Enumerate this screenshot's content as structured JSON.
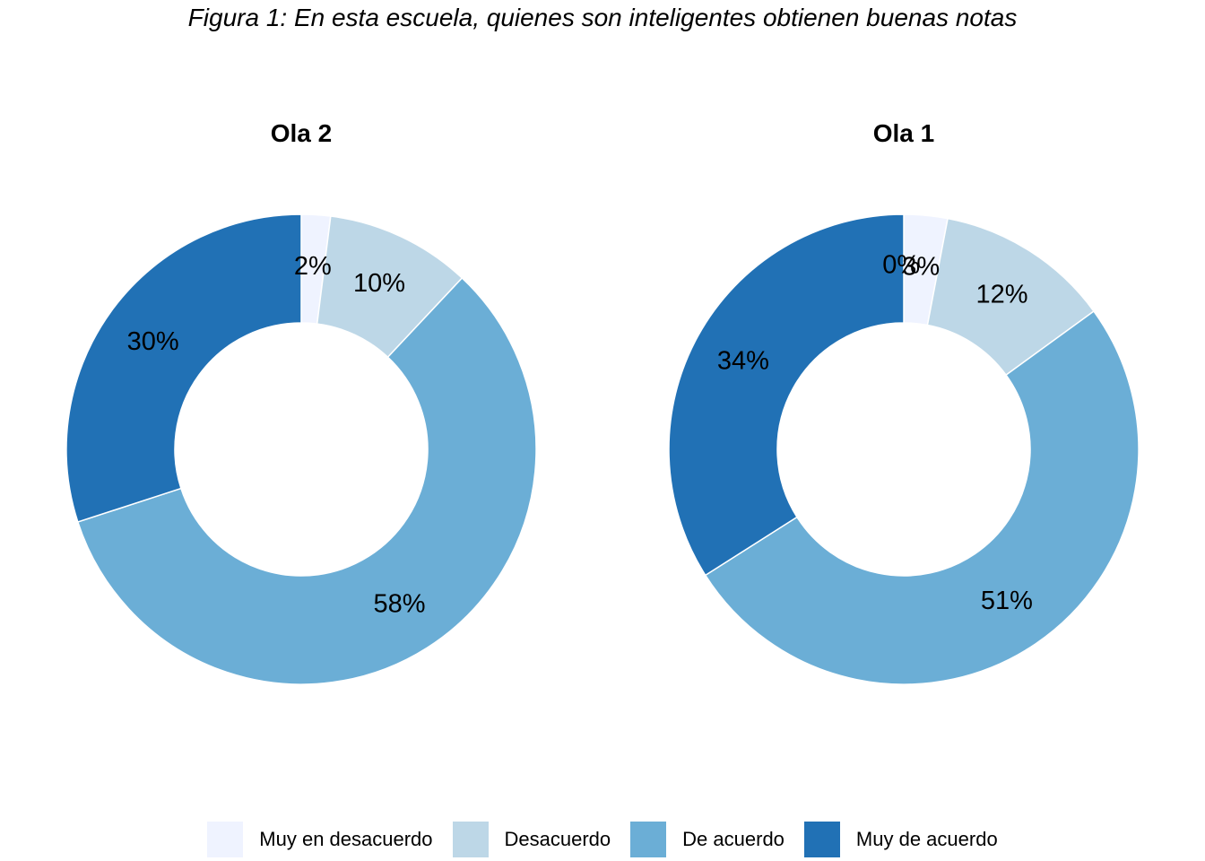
{
  "title": "Figura 1: En esta escuela, quienes son inteligentes obtienen buenas notas",
  "legend": [
    {
      "label": "Muy en desacuerdo",
      "color": "#eff3ff"
    },
    {
      "label": "Desacuerdo",
      "color": "#bdd7e7"
    },
    {
      "label": "De acuerdo",
      "color": "#6baed6"
    },
    {
      "label": "Muy de acuerdo",
      "color": "#2171b5"
    }
  ],
  "chart_data": [
    {
      "type": "pie",
      "title": "Ola 2",
      "categories": [
        "Muy en desacuerdo",
        "Desacuerdo",
        "De acuerdo",
        "Muy de acuerdo"
      ],
      "values": [
        2,
        10,
        58,
        30
      ],
      "labels": [
        "2%",
        "10%",
        "58%",
        "30%"
      ],
      "colors": [
        "#eff3ff",
        "#bdd7e7",
        "#6baed6",
        "#2171b5"
      ]
    },
    {
      "type": "pie",
      "title": "Ola 1",
      "categories": [
        "Muy en desacuerdo",
        "Desacuerdo",
        "De acuerdo",
        "Muy de acuerdo"
      ],
      "values": [
        3,
        12,
        51,
        34
      ],
      "labels": [
        "3%",
        "12%",
        "51%",
        "34%"
      ],
      "extra_labels": [
        "0%"
      ],
      "colors": [
        "#eff3ff",
        "#bdd7e7",
        "#6baed6",
        "#2171b5"
      ]
    }
  ]
}
